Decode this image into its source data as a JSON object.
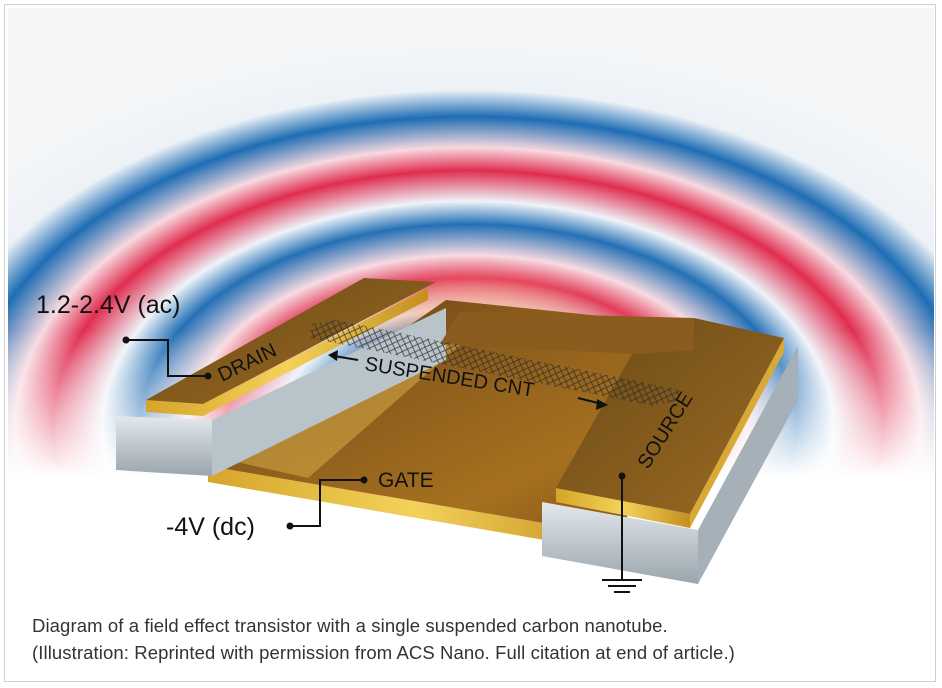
{
  "figure": {
    "labels": {
      "drain_voltage": "1.2-2.4V (ac)",
      "gate_voltage": "-4V (dc)",
      "drain": "DRAIN",
      "gate": "GATE",
      "source": "SOURCE",
      "cnt": "SUSPENDED CNT"
    }
  },
  "caption": {
    "line1": "Diagram of a field effect transistor with a single suspended carbon nanotube.",
    "line2": "(Illustration: Reprinted with permission from ACS Nano. Full citation at end of article.)"
  }
}
